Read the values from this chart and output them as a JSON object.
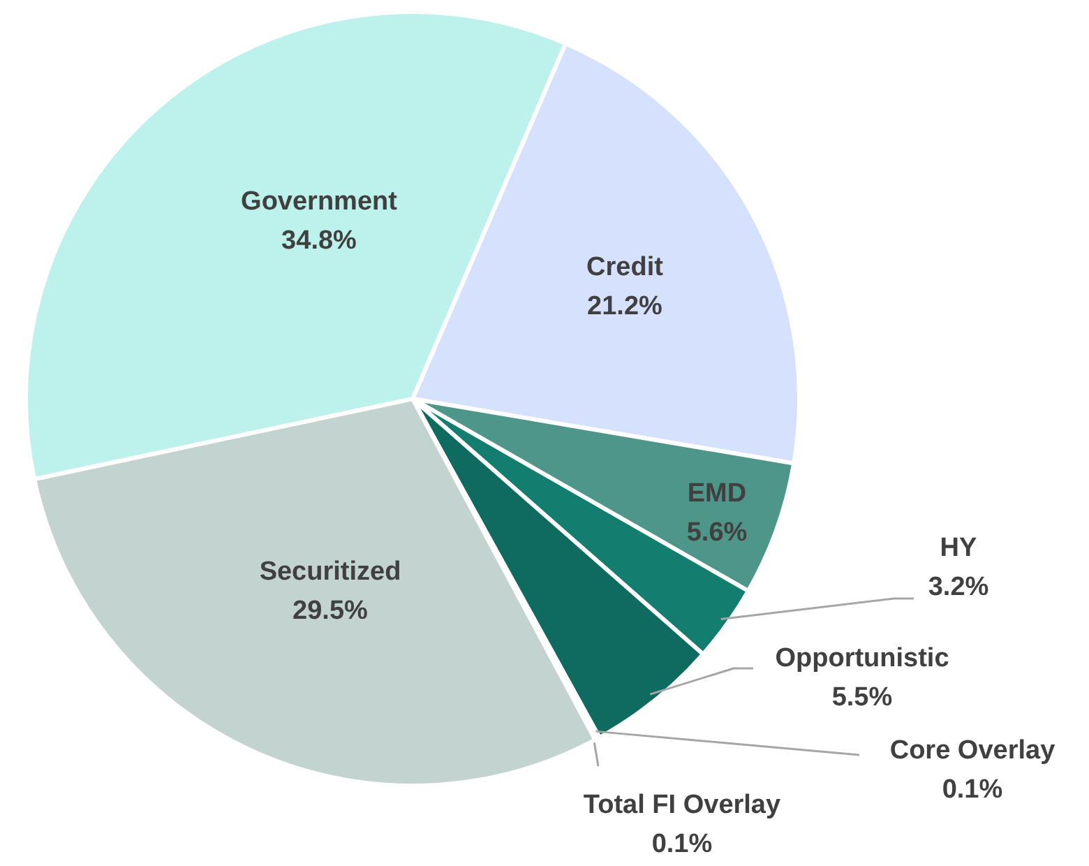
{
  "chart_data": {
    "type": "pie",
    "categories": [
      "Credit",
      "EMD",
      "HY",
      "Opportunistic",
      "Core Overlay",
      "Total FI Overlay",
      "Securitized",
      "Government"
    ],
    "values": [
      21.2,
      5.6,
      3.2,
      5.5,
      0.1,
      0.1,
      29.5,
      34.8
    ],
    "colors": [
      "#d6e2fd",
      "#4e9689",
      "#137d6f",
      "#0f6b60",
      "#127566",
      "#0e6a5e",
      "#c3d3cf",
      "#bdf2ec"
    ],
    "value_labels": [
      "21.2%",
      "5.6%",
      "3.2%",
      "5.5%",
      "0.1%",
      "0.1%",
      "29.5%",
      "34.8%"
    ]
  }
}
